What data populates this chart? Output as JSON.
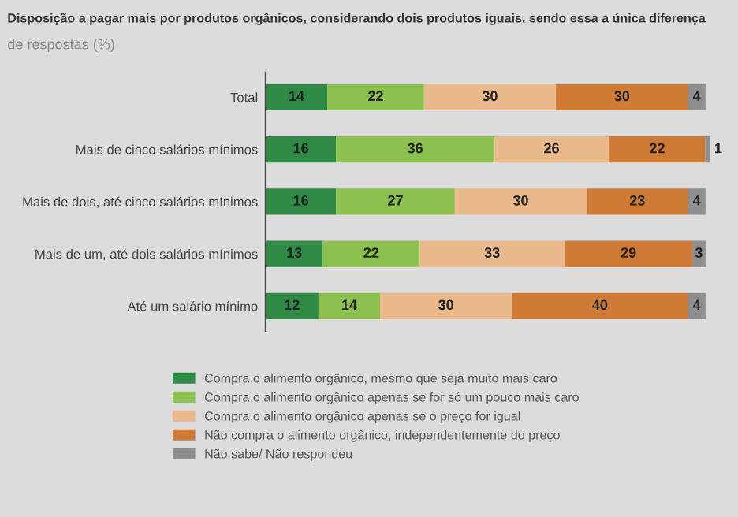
{
  "chart_data": {
    "type": "bar",
    "orientation": "horizontal",
    "stacked": true,
    "data_labels": true,
    "legend": "bottom",
    "grid": false,
    "title": "Disposição a pagar mais por produtos orgânicos, considerando dois produtos iguais, sendo essa a única diferença",
    "subtitle": "de respostas (%)",
    "categories": [
      "Total",
      "Mais de cinco salários mínimos",
      "Mais de dois, até cinco salários mínimos",
      "Mais de um, até dois salários mínimos",
      "Até um salário mínimo"
    ],
    "series": [
      {
        "name": "Compra o alimento orgânico, mesmo que seja muito mais caro",
        "color": "#2f8a45",
        "values": [
          14,
          16,
          16,
          13,
          12
        ]
      },
      {
        "name": "Compra o alimento orgânico apenas se for só um pouco mais caro",
        "color": "#8cc04f",
        "values": [
          22,
          36,
          27,
          22,
          14
        ]
      },
      {
        "name": "Compra o alimento orgânico apenas se o preço for igual",
        "color": "#e9b98c",
        "values": [
          30,
          26,
          30,
          33,
          30
        ]
      },
      {
        "name": "Não compra o alimento orgânico, independentemente do preço",
        "color": "#cf7a35",
        "values": [
          30,
          22,
          23,
          29,
          40
        ]
      },
      {
        "name": "Não sabe/ Não respondeu",
        "color": "#8e8e8e",
        "values": [
          4,
          1,
          4,
          3,
          4
        ]
      }
    ]
  }
}
